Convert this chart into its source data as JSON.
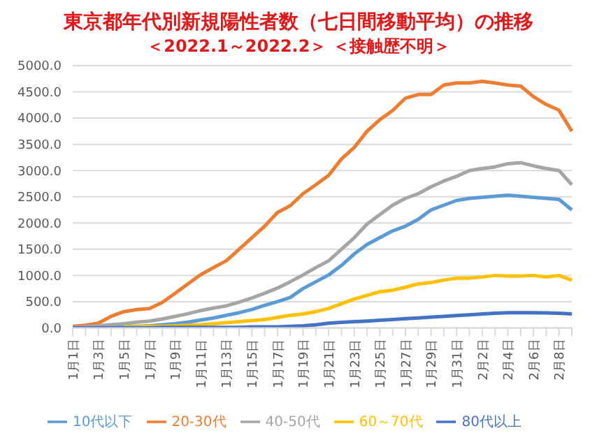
{
  "chart_data": {
    "type": "line",
    "title": "東京都年代別新規陽性者数（七日間移動平均）の推移",
    "subtitle": "＜2022.1～2022.2＞ ＜接触歴不明＞",
    "categories": [
      "1月1日",
      null,
      "1月3日",
      null,
      "1月5日",
      null,
      "1月7日",
      null,
      "1月9日",
      null,
      "1月11日",
      null,
      "1月13日",
      null,
      "1月15日",
      null,
      "1月17日",
      null,
      "1月19日",
      null,
      "1月21日",
      null,
      "1月23日",
      null,
      "1月25日",
      null,
      "1月27日",
      null,
      "1月29日",
      null,
      "1月31日",
      null,
      "2月2日",
      null,
      "2月4日",
      null,
      "2月6日",
      null,
      "2月8日",
      null
    ],
    "series": [
      {
        "name": "10代以下",
        "color": "#5b9bd5",
        "values": [
          10,
          10,
          10,
          10,
          20,
          30,
          40,
          60,
          80,
          110,
          150,
          190,
          240,
          290,
          350,
          430,
          500,
          580,
          750,
          880,
          1010,
          1190,
          1410,
          1590,
          1720,
          1850,
          1940,
          2070,
          2250,
          2340,
          2430,
          2470,
          2490,
          2510,
          2530,
          2510,
          2490,
          2470,
          2450,
          2250
        ]
      },
      {
        "name": "20-30代",
        "color": "#ed7d31",
        "values": [
          30,
          50,
          90,
          220,
          310,
          350,
          370,
          485,
          660,
          840,
          1015,
          1150,
          1280,
          1500,
          1720,
          1940,
          2200,
          2330,
          2560,
          2730,
          2910,
          3220,
          3440,
          3750,
          3970,
          4145,
          4380,
          4450,
          4450,
          4630,
          4670,
          4670,
          4700,
          4670,
          4630,
          4610,
          4410,
          4260,
          4150,
          3750
        ]
      },
      {
        "name": "40-50代",
        "color": "#a5a5a5",
        "values": [
          10,
          20,
          40,
          60,
          80,
          110,
          130,
          170,
          220,
          270,
          330,
          380,
          420,
          490,
          570,
          660,
          760,
          880,
          1010,
          1150,
          1280,
          1500,
          1720,
          1980,
          2160,
          2340,
          2470,
          2560,
          2690,
          2800,
          2890,
          3000,
          3040,
          3070,
          3130,
          3150,
          3090,
          3040,
          3000,
          2730
        ]
      },
      {
        "name": "60～70代",
        "color": "#ffc000",
        "values": [
          null,
          null,
          null,
          null,
          20,
          20,
          30,
          30,
          40,
          50,
          60,
          80,
          100,
          120,
          140,
          160,
          200,
          240,
          265,
          310,
          370,
          460,
          550,
          620,
          690,
          720,
          775,
          840,
          865,
          910,
          950,
          950,
          970,
          1000,
          990,
          990,
          1000,
          970,
          1000,
          910
        ]
      },
      {
        "name": "80代以上",
        "color": "#4472c4",
        "values": [
          0,
          0,
          0,
          0,
          0,
          0,
          0,
          10,
          10,
          10,
          10,
          10,
          10,
          10,
          20,
          20,
          20,
          30,
          40,
          60,
          90,
          105,
          120,
          130,
          145,
          160,
          175,
          190,
          205,
          220,
          235,
          250,
          265,
          280,
          290,
          290,
          290,
          285,
          280,
          265
        ]
      }
    ],
    "ylim": [
      0,
      5000
    ],
    "yticks": [
      {
        "value": 0,
        "label": "0.0"
      },
      {
        "value": 500,
        "label": "500.0"
      },
      {
        "value": 1000,
        "label": "1000.0"
      },
      {
        "value": 1500,
        "label": "1500.0"
      },
      {
        "value": 2000,
        "label": "2000.0"
      },
      {
        "value": 2500,
        "label": "2500.0"
      },
      {
        "value": 3000,
        "label": "3000.0"
      },
      {
        "value": 3500,
        "label": "3500.0"
      },
      {
        "value": 4000,
        "label": "4000.0"
      },
      {
        "value": 4500,
        "label": "4500.0"
      },
      {
        "value": 5000,
        "label": "5000.0"
      }
    ],
    "grid": "y",
    "legend": "bottom",
    "marker": "none",
    "line_style": "solid"
  }
}
